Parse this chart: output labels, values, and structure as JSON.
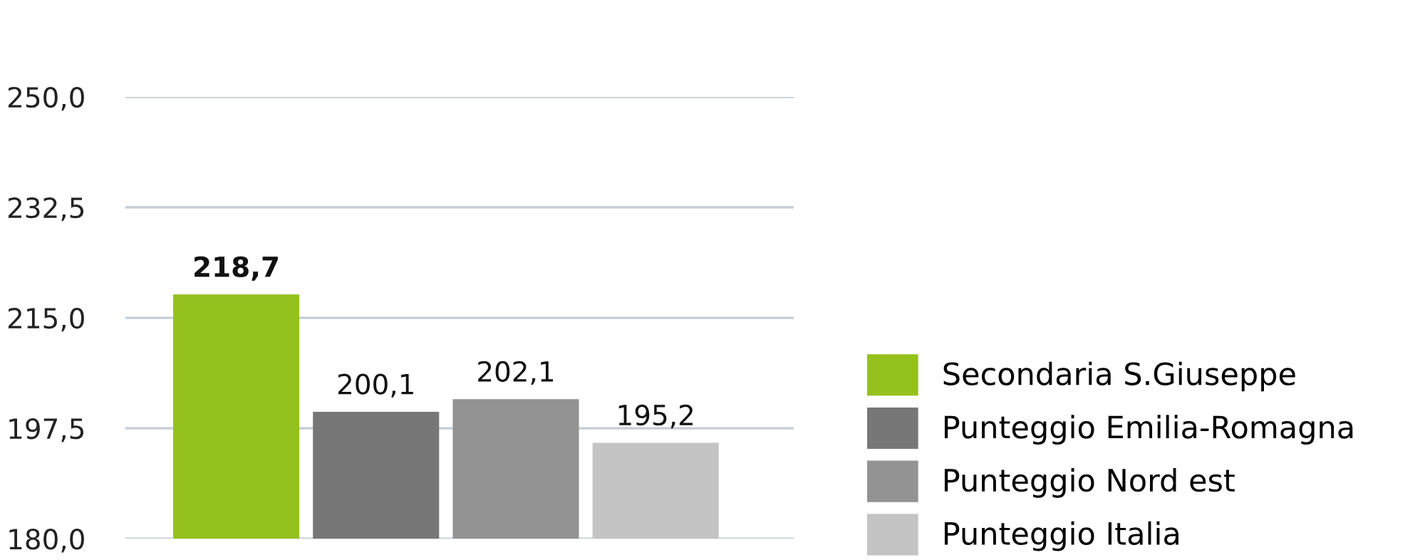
{
  "chart_data": {
    "type": "bar",
    "categories": [
      null
    ],
    "series": [
      {
        "name": "Secondaria S.Giuseppe",
        "color": "#95c11f",
        "values": [
          218.7
        ],
        "value_labels": [
          "218,7"
        ]
      },
      {
        "name": "Punteggio Emilia-Romagna",
        "color": "#777777",
        "values": [
          200.1
        ],
        "value_labels": [
          "200,1"
        ]
      },
      {
        "name": "Punteggio Nord est",
        "color": "#939393",
        "values": [
          202.1
        ],
        "value_labels": [
          "202,1"
        ]
      },
      {
        "name": "Punteggio Italia",
        "color": "#c4c4c4",
        "values": [
          195.2
        ],
        "value_labels": [
          "195,2"
        ]
      }
    ],
    "ylim": [
      180,
      250
    ],
    "yticks": [
      {
        "value": 180,
        "label": "180,0"
      },
      {
        "value": 197.5,
        "label": "197,5"
      },
      {
        "value": 215,
        "label": "215,0"
      },
      {
        "value": 232.5,
        "label": "232,5"
      },
      {
        "value": 250,
        "label": "250,0"
      }
    ],
    "grid": "y",
    "legend": "right"
  }
}
